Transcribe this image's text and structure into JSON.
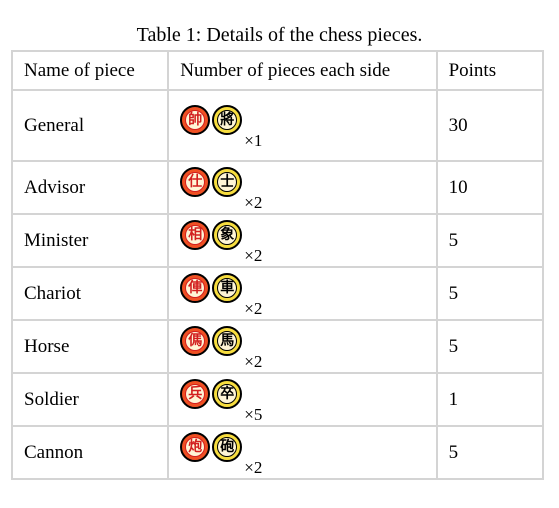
{
  "caption": "Table 1: Details of the chess pieces.",
  "headers": [
    "Name of piece",
    "Number of pieces each side",
    "Points"
  ],
  "rows": [
    {
      "name": "General",
      "red": "帥",
      "black": "將",
      "mult": "×1",
      "points": "30"
    },
    {
      "name": "Advisor",
      "red": "仕",
      "black": "士",
      "mult": "×2",
      "points": "10"
    },
    {
      "name": "Minister",
      "red": "相",
      "black": "象",
      "mult": "×2",
      "points": "5"
    },
    {
      "name": "Chariot",
      "red": "俥",
      "black": "車",
      "mult": "×2",
      "points": "5"
    },
    {
      "name": "Horse",
      "red": "傌",
      "black": "馬",
      "mult": "×2",
      "points": "5"
    },
    {
      "name": "Soldier",
      "red": "兵",
      "black": "卒",
      "mult": "×5",
      "points": "1"
    },
    {
      "name": "Cannon",
      "red": "炮",
      "black": "砲",
      "mult": "×2",
      "points": "5"
    }
  ],
  "colors": {
    "red_piece": "#ef5023",
    "black_piece": "#f7dd3f",
    "border": "#d4d4d4"
  }
}
